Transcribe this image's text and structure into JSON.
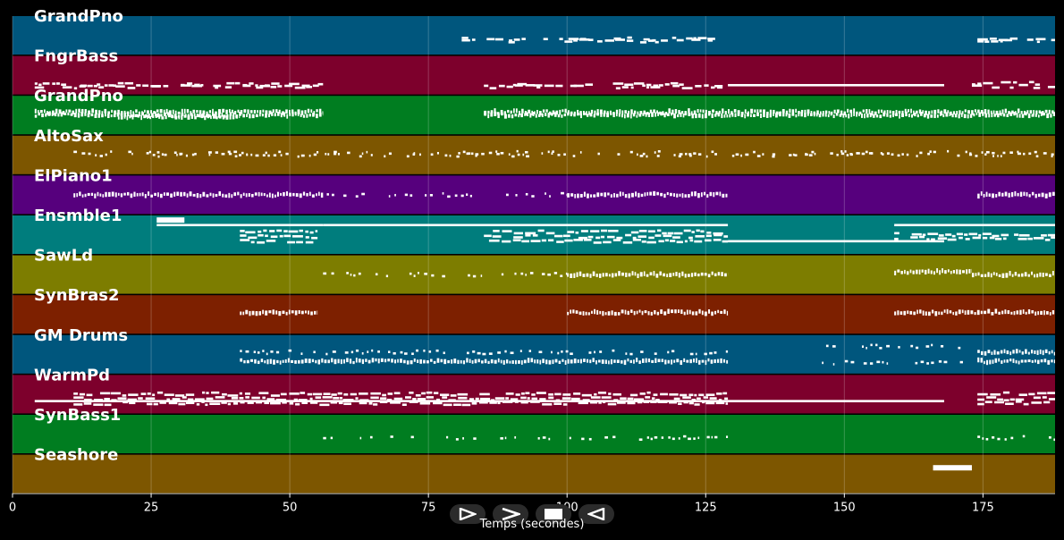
{
  "window": {
    "background": "#000000"
  },
  "xaxis": {
    "label": "Temps (secondes)",
    "range": [
      0,
      188
    ],
    "ticks": [
      0,
      25,
      50,
      75,
      100,
      125,
      150,
      175
    ],
    "grid": true
  },
  "controls": [
    {
      "name": "play-icon",
      "symbol": "play"
    },
    {
      "name": "next-icon",
      "symbol": "chevron-right"
    },
    {
      "name": "stop-icon",
      "symbol": "stop"
    },
    {
      "name": "rewind-icon",
      "symbol": "rewind"
    }
  ],
  "tracks": [
    {
      "name": "GrandPno",
      "color": "#00567d",
      "clips": [
        {
          "start": 81,
          "end": 129,
          "style": "sparse",
          "density": 0.55,
          "rows": [
            0.6,
            0.65
          ]
        },
        {
          "start": 174,
          "end": 188,
          "style": "sparse",
          "density": 0.7,
          "rows": [
            0.62,
            0.66
          ]
        }
      ]
    },
    {
      "name": "FngrBass",
      "color": "#7d002c",
      "clips": [
        {
          "start": 4,
          "end": 56,
          "style": "sparse",
          "density": 0.7,
          "rows": [
            0.75,
            0.8
          ]
        },
        {
          "start": 85,
          "end": 129,
          "style": "sparse",
          "density": 0.7,
          "rows": [
            0.75,
            0.8
          ]
        },
        {
          "start": 129,
          "end": 168,
          "style": "line",
          "rows": [
            0.76
          ]
        },
        {
          "start": 173,
          "end": 188,
          "style": "sparse",
          "density": 0.7,
          "rows": [
            0.72,
            0.8
          ]
        }
      ]
    },
    {
      "name": "GrandPno",
      "color": "#007d20",
      "clips": [
        {
          "start": 4,
          "end": 56,
          "style": "dense",
          "rows": [
            0.42,
            0.5
          ]
        },
        {
          "start": 19,
          "end": 41,
          "style": "dense",
          "rows": [
            0.55
          ]
        },
        {
          "start": 85,
          "end": 188,
          "style": "dense",
          "rows": [
            0.42,
            0.5
          ]
        }
      ]
    },
    {
      "name": "AltoSax",
      "color": "#7d5600",
      "clips": [
        {
          "start": 11,
          "end": 188,
          "style": "dots",
          "density": 0.5,
          "rows": [
            0.45,
            0.5
          ]
        }
      ]
    },
    {
      "name": "ElPiano1",
      "color": "#56007d",
      "clips": [
        {
          "start": 11,
          "end": 56,
          "style": "dense",
          "rows": [
            0.5
          ]
        },
        {
          "start": 56,
          "end": 100,
          "style": "dots",
          "density": 0.5,
          "rows": [
            0.5
          ]
        },
        {
          "start": 100,
          "end": 129,
          "style": "dense",
          "rows": [
            0.5
          ]
        },
        {
          "start": 174,
          "end": 188,
          "style": "dense",
          "rows": [
            0.5
          ]
        }
      ]
    },
    {
      "name": "Ensmble1",
      "color": "#007d7d",
      "clips": [
        {
          "start": 26,
          "end": 31,
          "style": "block",
          "rows": [
            0.12
          ]
        },
        {
          "start": 26,
          "end": 56,
          "style": "line",
          "rows": [
            0.25
          ]
        },
        {
          "start": 41,
          "end": 55,
          "style": "sparse",
          "density": 0.9,
          "rows": [
            0.43,
            0.55,
            0.67
          ]
        },
        {
          "start": 56,
          "end": 129,
          "style": "line",
          "rows": [
            0.25
          ]
        },
        {
          "start": 85,
          "end": 129,
          "style": "sparse",
          "density": 0.9,
          "rows": [
            0.43,
            0.55,
            0.67
          ]
        },
        {
          "start": 129,
          "end": 168,
          "style": "line",
          "rows": [
            0.67
          ]
        },
        {
          "start": 159,
          "end": 188,
          "style": "line",
          "rows": [
            0.25
          ]
        },
        {
          "start": 159,
          "end": 188,
          "style": "sparse",
          "density": 0.9,
          "rows": [
            0.5,
            0.6
          ]
        }
      ]
    },
    {
      "name": "SawLd",
      "color": "#7d7d00",
      "clips": [
        {
          "start": 56,
          "end": 100,
          "style": "dots",
          "density": 0.55,
          "rows": [
            0.5
          ]
        },
        {
          "start": 100,
          "end": 129,
          "style": "dense",
          "rows": [
            0.5
          ]
        },
        {
          "start": 159,
          "end": 173,
          "style": "dense",
          "rows": [
            0.43
          ]
        },
        {
          "start": 173,
          "end": 188,
          "style": "dense",
          "rows": [
            0.5
          ]
        }
      ]
    },
    {
      "name": "SynBras2",
      "color": "#7d2000",
      "clips": [
        {
          "start": 41,
          "end": 55,
          "style": "dense",
          "rows": [
            0.45
          ]
        },
        {
          "start": 100,
          "end": 129,
          "style": "dense",
          "rows": [
            0.45
          ]
        },
        {
          "start": 159,
          "end": 188,
          "style": "dense",
          "rows": [
            0.45
          ]
        }
      ]
    },
    {
      "name": "GM Drums",
      "color": "#00567d",
      "clips": [
        {
          "start": 41,
          "end": 129,
          "style": "dots",
          "density": 0.75,
          "rows": [
            0.45
          ]
        },
        {
          "start": 41,
          "end": 129,
          "style": "dense",
          "rows": [
            0.68
          ]
        },
        {
          "start": 145,
          "end": 172,
          "style": "dots",
          "density": 0.55,
          "rows": [
            0.3,
            0.72
          ]
        },
        {
          "start": 174,
          "end": 188,
          "style": "dense",
          "rows": [
            0.45,
            0.68
          ]
        }
      ]
    },
    {
      "name": "WarmPd",
      "color": "#7d002c",
      "clips": [
        {
          "start": 4,
          "end": 168,
          "style": "line",
          "rows": [
            0.68
          ]
        },
        {
          "start": 11,
          "end": 129,
          "style": "sparse",
          "density": 0.9,
          "rows": [
            0.5,
            0.62,
            0.74
          ]
        },
        {
          "start": 174,
          "end": 188,
          "style": "sparse",
          "density": 0.9,
          "rows": [
            0.48,
            0.62,
            0.72
          ]
        }
      ]
    },
    {
      "name": "SynBass1",
      "color": "#007d20",
      "clips": [
        {
          "start": 56,
          "end": 98,
          "style": "dots",
          "density": 0.45,
          "rows": [
            0.6
          ]
        },
        {
          "start": 98,
          "end": 129,
          "style": "dots",
          "density": 0.7,
          "rows": [
            0.6
          ]
        },
        {
          "start": 174,
          "end": 188,
          "style": "dots",
          "density": 0.7,
          "rows": [
            0.6
          ]
        }
      ]
    },
    {
      "name": "Seashore",
      "color": "#7d5600",
      "clips": [
        {
          "start": 166,
          "end": 173,
          "style": "block",
          "rows": [
            0.34
          ]
        }
      ]
    }
  ]
}
